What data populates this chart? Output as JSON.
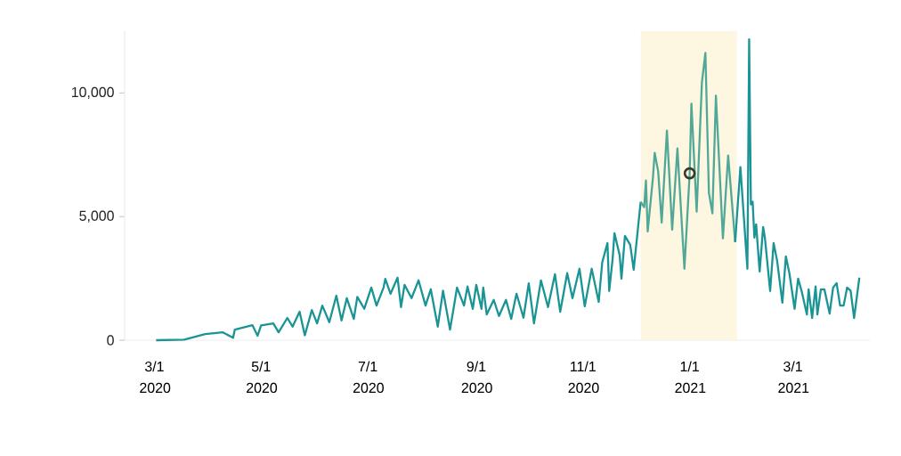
{
  "chart_data": {
    "type": "line",
    "xlim": [
      "2020-02-13",
      "2021-04-14"
    ],
    "ylim": [
      0,
      12500
    ],
    "xticks": [
      {
        "value": "2020-03-01",
        "label": "3/1 2020"
      },
      {
        "value": "2020-05-01",
        "label": "5/1 2020"
      },
      {
        "value": "2020-07-01",
        "label": "7/1 2020"
      },
      {
        "value": "2020-09-01",
        "label": "9/1 2020"
      },
      {
        "value": "2020-11-01",
        "label": "11/1 2020"
      },
      {
        "value": "2021-01-01",
        "label": "1/1 2021"
      },
      {
        "value": "2021-03-01",
        "label": "3/1 2021"
      }
    ],
    "yticks": [
      {
        "value": 0,
        "label": "0"
      },
      {
        "value": 5000,
        "label": "5,000"
      },
      {
        "value": 10000,
        "label": "10,000"
      }
    ],
    "bands": [
      {
        "axis": "x",
        "from": "2020-12-04",
        "to": "2021-01-28",
        "color": "#fdf6e0"
      }
    ],
    "series": [
      {
        "color": "#1a9494",
        "x": [
          "2020-03-02",
          "2020-03-18",
          "2020-03-30",
          "2020-04-09",
          "2020-04-15",
          "2020-04-16",
          "2020-04-26",
          "2020-04-29",
          "2020-05-01",
          "2020-05-08",
          "2020-05-11",
          "2020-05-16",
          "2020-05-19",
          "2020-05-23",
          "2020-05-26",
          "2020-05-30",
          "2020-06-02",
          "2020-06-05",
          "2020-06-09",
          "2020-06-13",
          "2020-06-16",
          "2020-06-19",
          "2020-06-23",
          "2020-06-25",
          "2020-06-29",
          "2020-07-03",
          "2020-07-06",
          "2020-07-10",
          "2020-07-11",
          "2020-07-14",
          "2020-07-18",
          "2020-07-20",
          "2020-07-22",
          "2020-07-26",
          "2020-07-30",
          "2020-08-03",
          "2020-08-06",
          "2020-08-10",
          "2020-08-13",
          "2020-08-17",
          "2020-08-19",
          "2020-08-21",
          "2020-08-25",
          "2020-08-27",
          "2020-08-30",
          "2020-09-01",
          "2020-09-04",
          "2020-09-05",
          "2020-09-07",
          "2020-09-11",
          "2020-09-14",
          "2020-09-18",
          "2020-09-21",
          "2020-09-24",
          "2020-09-28",
          "2020-10-01",
          "2020-10-04",
          "2020-10-08",
          "2020-10-12",
          "2020-10-16",
          "2020-10-19",
          "2020-10-23",
          "2020-10-26",
          "2020-10-30",
          "2020-11-02",
          "2020-11-06",
          "2020-11-10",
          "2020-11-12",
          "2020-11-15",
          "2020-11-16",
          "2020-11-18",
          "2020-11-19",
          "2020-11-22",
          "2020-11-23",
          "2020-11-25",
          "2020-11-28",
          "2020-11-30",
          "2020-12-04"
        ],
        "values": [
          0,
          20,
          250,
          320,
          100,
          430,
          610,
          180,
          600,
          680,
          320,
          900,
          550,
          1150,
          200,
          1220,
          680,
          1400,
          730,
          1800,
          800,
          1700,
          860,
          1750,
          1270,
          2130,
          1400,
          2130,
          2480,
          1880,
          2530,
          1340,
          2240,
          1700,
          2420,
          1400,
          2060,
          550,
          2000,
          430,
          1270,
          2130,
          1400,
          2170,
          1270,
          2240,
          1270,
          2130,
          1040,
          1630,
          980,
          1630,
          860,
          1880,
          910,
          2300,
          680,
          2420,
          1340,
          2670,
          1150,
          2710,
          1700,
          2890,
          1370,
          2890,
          1550,
          3140,
          3930,
          1990,
          3320,
          4330,
          3430,
          2490,
          4220,
          3860,
          2850,
          5600
        ]
      },
      {
        "color": "#52a898",
        "x": [
          "2020-12-04",
          "2020-12-06",
          "2020-12-07",
          "2020-12-08",
          "2020-12-11",
          "2020-12-12",
          "2020-12-14",
          "2020-12-16",
          "2020-12-19",
          "2020-12-22",
          "2020-12-25",
          "2020-12-29",
          "2021-01-01",
          "2021-01-02",
          "2021-01-05",
          "2021-01-08",
          "2021-01-10",
          "2021-01-12",
          "2021-01-14",
          "2021-01-16",
          "2021-01-20",
          "2021-01-23",
          "2021-01-27"
        ],
        "values": [
          5600,
          5380,
          6460,
          4400,
          6570,
          7580,
          6820,
          4760,
          8480,
          4470,
          7760,
          2890,
          6750,
          9570,
          5200,
          10430,
          11620,
          5960,
          5130,
          9890,
          4120,
          7470,
          3970
        ]
      },
      {
        "color": "#1a9494",
        "x": [
          "2021-01-27",
          "2021-01-30",
          "2021-02-03",
          "2021-02-04",
          "2021-02-05",
          "2021-02-06",
          "2021-02-07",
          "2021-02-08",
          "2021-02-10",
          "2021-02-12",
          "2021-02-13",
          "2021-02-16",
          "2021-02-18",
          "2021-02-20",
          "2021-02-23",
          "2021-02-25",
          "2021-02-27",
          "2021-03-02",
          "2021-03-04",
          "2021-03-06",
          "2021-03-09",
          "2021-03-10",
          "2021-03-12",
          "2021-03-14",
          "2021-03-15",
          "2021-03-17",
          "2021-03-19",
          "2021-03-22",
          "2021-03-24",
          "2021-03-26",
          "2021-03-28",
          "2021-03-30",
          "2021-04-01",
          "2021-04-03",
          "2021-04-05",
          "2021-04-08"
        ],
        "values": [
          3970,
          7000,
          2890,
          12170,
          5490,
          5600,
          4150,
          4690,
          2780,
          4580,
          4150,
          1990,
          3930,
          3210,
          1520,
          3390,
          2710,
          1270,
          2490,
          1990,
          1040,
          2060,
          900,
          2170,
          1040,
          2060,
          2060,
          1080,
          2130,
          2310,
          1400,
          1400,
          2130,
          2000,
          900,
          2530
        ]
      },
      {
        "type": "scatter",
        "marker": "circle",
        "color": "#3d3528",
        "x": [
          "2021-01-01"
        ],
        "values": [
          6750
        ]
      }
    ]
  }
}
